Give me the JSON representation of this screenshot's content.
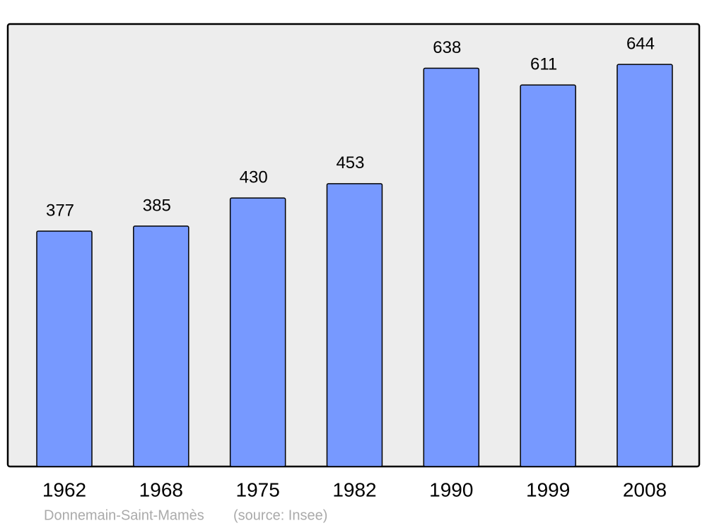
{
  "chart_data": {
    "type": "bar",
    "categories": [
      "1962",
      "1968",
      "1975",
      "1982",
      "1990",
      "1999",
      "2008"
    ],
    "values": [
      377,
      385,
      430,
      453,
      638,
      611,
      644
    ],
    "color": "#7799ff",
    "caption": "Donnemain-Saint-Mamès",
    "source": "(source: Insee)"
  }
}
